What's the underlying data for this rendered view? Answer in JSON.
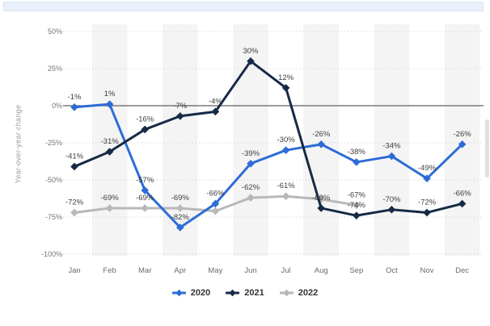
{
  "page": {
    "background": "#ffffff"
  },
  "top_banner": {
    "color": "#e8f1fb"
  },
  "scrollbar": {
    "thumb_color": "#e0e0e0"
  },
  "chart_data": {
    "type": "line",
    "title": "",
    "xlabel": "",
    "ylabel": "Year-over-year change",
    "categories": [
      "Jan",
      "Feb",
      "Mar",
      "Apr",
      "May",
      "Jun",
      "Jul",
      "Aug",
      "Sep",
      "Oct",
      "Nov",
      "Dec"
    ],
    "ylim": [
      -100,
      50
    ],
    "y_ticks": [
      {
        "value": 50,
        "label": "50%"
      },
      {
        "value": 25,
        "label": "25%"
      },
      {
        "value": 0,
        "label": "0%"
      },
      {
        "value": -25,
        "label": "-25%"
      },
      {
        "value": -50,
        "label": "-50%"
      },
      {
        "value": -75,
        "label": "-75%"
      },
      {
        "value": -100,
        "label": "-100%"
      }
    ],
    "grid": "horizontal-dotted",
    "plot_bands": "alternating-vertical-stripes",
    "stripe_color": "#f4f4f4",
    "zero_line_color": "#606060",
    "legend_position": "bottom",
    "series": [
      {
        "name": "2020",
        "color": "#2d6cd6",
        "values": [
          -1,
          1,
          -57,
          -82,
          -66,
          -39,
          -30,
          -26,
          -38,
          -34,
          -49,
          -26
        ],
        "labels": [
          "-1%",
          "1%",
          "-57%",
          "-82%",
          "-66%",
          "-39%",
          "-30%",
          "-26%",
          "-38%",
          "-34%",
          "-49%",
          "-26%"
        ]
      },
      {
        "name": "2021",
        "color": "#172a46",
        "values": [
          -41,
          -31,
          -16,
          -7,
          -4,
          30,
          12,
          -69,
          -74,
          -70,
          -72,
          -66
        ],
        "labels": [
          "-41%",
          "-31%",
          "-16%",
          "-7%",
          "-4%",
          "30%",
          "12%",
          "-69%",
          "-74%",
          "-70%",
          "-72%",
          "-66%"
        ]
      },
      {
        "name": "2022",
        "color": "#b8b8b8",
        "values": [
          -72,
          -69,
          -69,
          -69,
          -71,
          -62,
          -61,
          -63,
          -67,
          null,
          null,
          null
        ],
        "labels": [
          "-72%",
          "-69%",
          "-69%",
          "-69%",
          "",
          "-62%",
          "-61%",
          "",
          "-67%",
          "",
          "",
          ""
        ]
      }
    ]
  },
  "legend": {
    "items": [
      {
        "label": "2020"
      },
      {
        "label": "2021"
      },
      {
        "label": "2022"
      }
    ]
  }
}
